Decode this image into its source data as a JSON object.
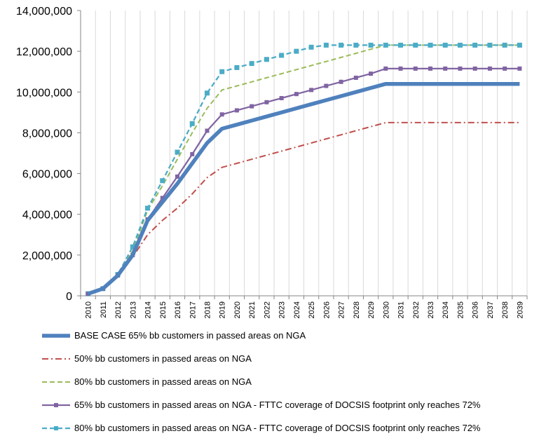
{
  "chart_data": {
    "type": "line",
    "title": "",
    "xlabel": "",
    "ylabel": "",
    "ylim": [
      0,
      14000000
    ],
    "yticks": [
      0,
      2000000,
      4000000,
      6000000,
      8000000,
      10000000,
      12000000,
      14000000
    ],
    "ytick_labels": [
      "0",
      "2,000,000",
      "4,000,000",
      "6,000,000",
      "8,000,000",
      "10,000,000",
      "12,000,000",
      "14,000,000"
    ],
    "x": [
      "2010",
      "2011",
      "2012",
      "2013",
      "2014",
      "2015",
      "2016",
      "2017",
      "2018",
      "2019",
      "2020",
      "2021",
      "2022",
      "2023",
      "2024",
      "2025",
      "2026",
      "2027",
      "2028",
      "2029",
      "2030",
      "2031",
      "2032",
      "2033",
      "2034",
      "2035",
      "2036",
      "2037",
      "2038",
      "2039"
    ],
    "grid": "vertical",
    "legend_position": "bottom",
    "series": [
      {
        "name": "BASE CASE 65% bb customers in passed areas on NGA",
        "color": "#4f81bd",
        "style": "solid-thick",
        "values": [
          100000,
          350000,
          1000000,
          2000000,
          3700000,
          4600000,
          5500000,
          6500000,
          7500000,
          8200000,
          8400000,
          8600000,
          8800000,
          9000000,
          9200000,
          9400000,
          9600000,
          9800000,
          10000000,
          10200000,
          10400000,
          10400000,
          10400000,
          10400000,
          10400000,
          10400000,
          10400000,
          10400000,
          10400000,
          10400000
        ]
      },
      {
        "name": "50% bb customers in passed areas on NGA",
        "color": "#c0504d",
        "style": "dash-dot",
        "values": [
          80000,
          300000,
          950000,
          1900000,
          3000000,
          3700000,
          4300000,
          5000000,
          5800000,
          6300000,
          6500000,
          6700000,
          6900000,
          7100000,
          7300000,
          7500000,
          7700000,
          7900000,
          8100000,
          8300000,
          8500000,
          8500000,
          8500000,
          8500000,
          8500000,
          8500000,
          8500000,
          8500000,
          8500000,
          8500000
        ]
      },
      {
        "name": "80% bb customers in passed areas on NGA",
        "color": "#9bbb59",
        "style": "dashed",
        "values": [
          100000,
          350000,
          1050000,
          2200000,
          4200000,
          5400000,
          6700000,
          8000000,
          9200000,
          10100000,
          10300000,
          10500000,
          10700000,
          10900000,
          11100000,
          11300000,
          11500000,
          11700000,
          11900000,
          12100000,
          12300000,
          12300000,
          12300000,
          12300000,
          12300000,
          12300000,
          12300000,
          12300000,
          12300000,
          12300000
        ]
      },
      {
        "name": "65% bb customers in passed areas on NGA - FTTC coverage of DOCSIS footprint only reaches 72%",
        "color": "#8064a2",
        "style": "solid-square",
        "values": [
          100000,
          350000,
          1000000,
          2000000,
          3750000,
          4800000,
          5850000,
          6950000,
          8100000,
          8900000,
          9100000,
          9300000,
          9500000,
          9700000,
          9900000,
          10100000,
          10300000,
          10500000,
          10700000,
          10900000,
          11150000,
          11150000,
          11150000,
          11150000,
          11150000,
          11150000,
          11150000,
          11150000,
          11150000,
          11150000
        ]
      },
      {
        "name": "80% bb customers in passed areas on NGA - FTTC coverage of DOCSIS footprint only reaches 72%",
        "color": "#4bacc6",
        "style": "dashed-square",
        "values": [
          100000,
          350000,
          1050000,
          2400000,
          4300000,
          5650000,
          7050000,
          8450000,
          9950000,
          11000000,
          11200000,
          11400000,
          11600000,
          11800000,
          12000000,
          12200000,
          12300000,
          12300000,
          12300000,
          12300000,
          12300000,
          12300000,
          12300000,
          12300000,
          12300000,
          12300000,
          12300000,
          12300000,
          12300000,
          12300000
        ]
      }
    ]
  }
}
